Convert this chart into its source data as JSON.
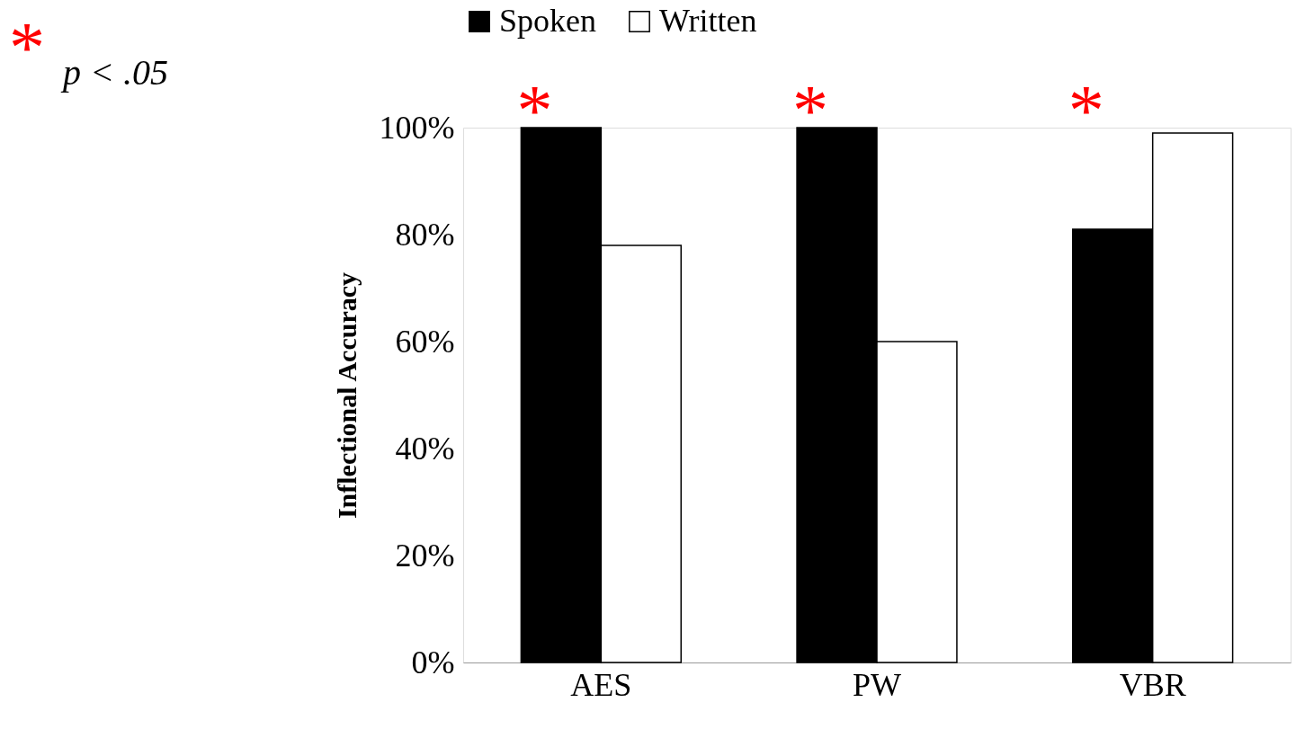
{
  "chart_data": {
    "type": "bar",
    "ylabel": "Inflectional Accuracy",
    "categories": [
      "AES",
      "PW",
      "VBR"
    ],
    "series": [
      {
        "name": "Spoken",
        "color": "#000000",
        "values": [
          100,
          100,
          81
        ]
      },
      {
        "name": "Written",
        "color": "#ffffff",
        "values": [
          78,
          60,
          99
        ]
      }
    ],
    "ylim": [
      0,
      100
    ],
    "yticks": [
      {
        "value": 0,
        "label": "0%"
      },
      {
        "value": 20,
        "label": "20%"
      },
      {
        "value": 40,
        "label": "40%"
      },
      {
        "value": 60,
        "label": "60%"
      },
      {
        "value": 80,
        "label": "80%"
      },
      {
        "value": 100,
        "label": "100%"
      }
    ],
    "grid": false,
    "legend": "top",
    "annotations": [
      "*",
      "*",
      "*",
      "*",
      "p < .05"
    ]
  }
}
